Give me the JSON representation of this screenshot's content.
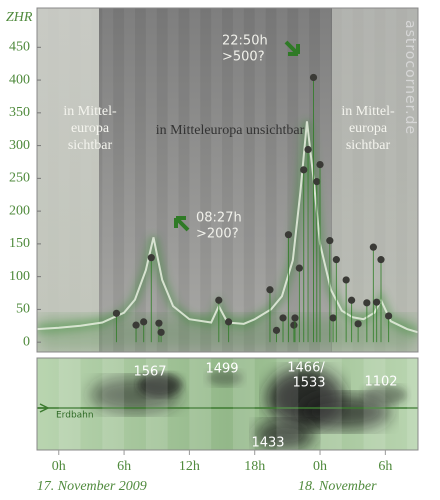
{
  "chart_data": {
    "type": "line",
    "y_label": "ZHR",
    "ylim": [
      -15,
      510
    ],
    "yticks": [
      0,
      50,
      100,
      150,
      200,
      250,
      300,
      350,
      400,
      450
    ],
    "xlim": [
      -2,
      33
    ],
    "xticks": [
      {
        "value": 0,
        "label": "0h"
      },
      {
        "value": 6,
        "label": "6h"
      },
      {
        "value": 12,
        "label": "12h"
      },
      {
        "value": 18,
        "label": "18h"
      },
      {
        "value": 24,
        "label": "0h"
      },
      {
        "value": 30,
        "label": "6h"
      }
    ],
    "date_labels": [
      "17. November 2009",
      "18. November"
    ],
    "series": [
      {
        "type": "line",
        "color": "#e8f0e0",
        "x": [
          -2,
          0,
          2,
          4,
          6,
          7,
          8,
          8.7,
          9.5,
          10.5,
          12,
          14,
          14.7,
          15.5,
          17,
          18,
          19.5,
          20.5,
          21.5,
          22.2,
          22.8,
          23.4,
          24,
          25,
          26,
          27,
          28,
          29,
          29.6,
          30.5,
          32,
          33
        ],
        "values": [
          20,
          22,
          25,
          30,
          45,
          65,
          110,
          160,
          95,
          55,
          35,
          30,
          55,
          30,
          28,
          35,
          50,
          70,
          125,
          230,
          337,
          250,
          150,
          80,
          48,
          38,
          35,
          45,
          64,
          32,
          20,
          15
        ]
      },
      {
        "type": "scatter",
        "color": "#3a3a36",
        "x": [
          5.3,
          7.1,
          7.8,
          8.5,
          9.2,
          9.4,
          14.7,
          15.6,
          19.4,
          20,
          20.6,
          21.1,
          21.6,
          21.7,
          22.1,
          22.5,
          22.9,
          23.4,
          23.7,
          24.0,
          24.9,
          25.2,
          25.5,
          26.4,
          26.9,
          27.5,
          28.3,
          28.9,
          29.2,
          29.6,
          30.3
        ],
        "values": [
          44,
          26,
          31,
          129,
          29,
          15,
          64,
          31,
          80,
          18,
          37,
          164,
          26,
          37,
          113,
          263,
          294,
          404,
          245,
          271,
          155,
          37,
          126,
          95,
          64,
          28,
          60,
          145,
          61,
          126,
          40
        ]
      }
    ],
    "annotations": {
      "visible_left": [
        "in Mittel-",
        "europa",
        "sichtbar"
      ],
      "invisible": "in Mitteleuropa unsichtbar",
      "visible_right": [
        "in Mittel-",
        "europa",
        "sichtbar"
      ],
      "peak1": [
        "08:27h",
        ">200?"
      ],
      "peak2": [
        "22:50h",
        ">500?"
      ],
      "watermark": "astrocorner.de"
    },
    "trail_panel": {
      "labels": [
        "1567",
        "1499",
        "1466/",
        "1533",
        "1102",
        "1433"
      ],
      "orbit_label": "Erdbahn"
    }
  }
}
